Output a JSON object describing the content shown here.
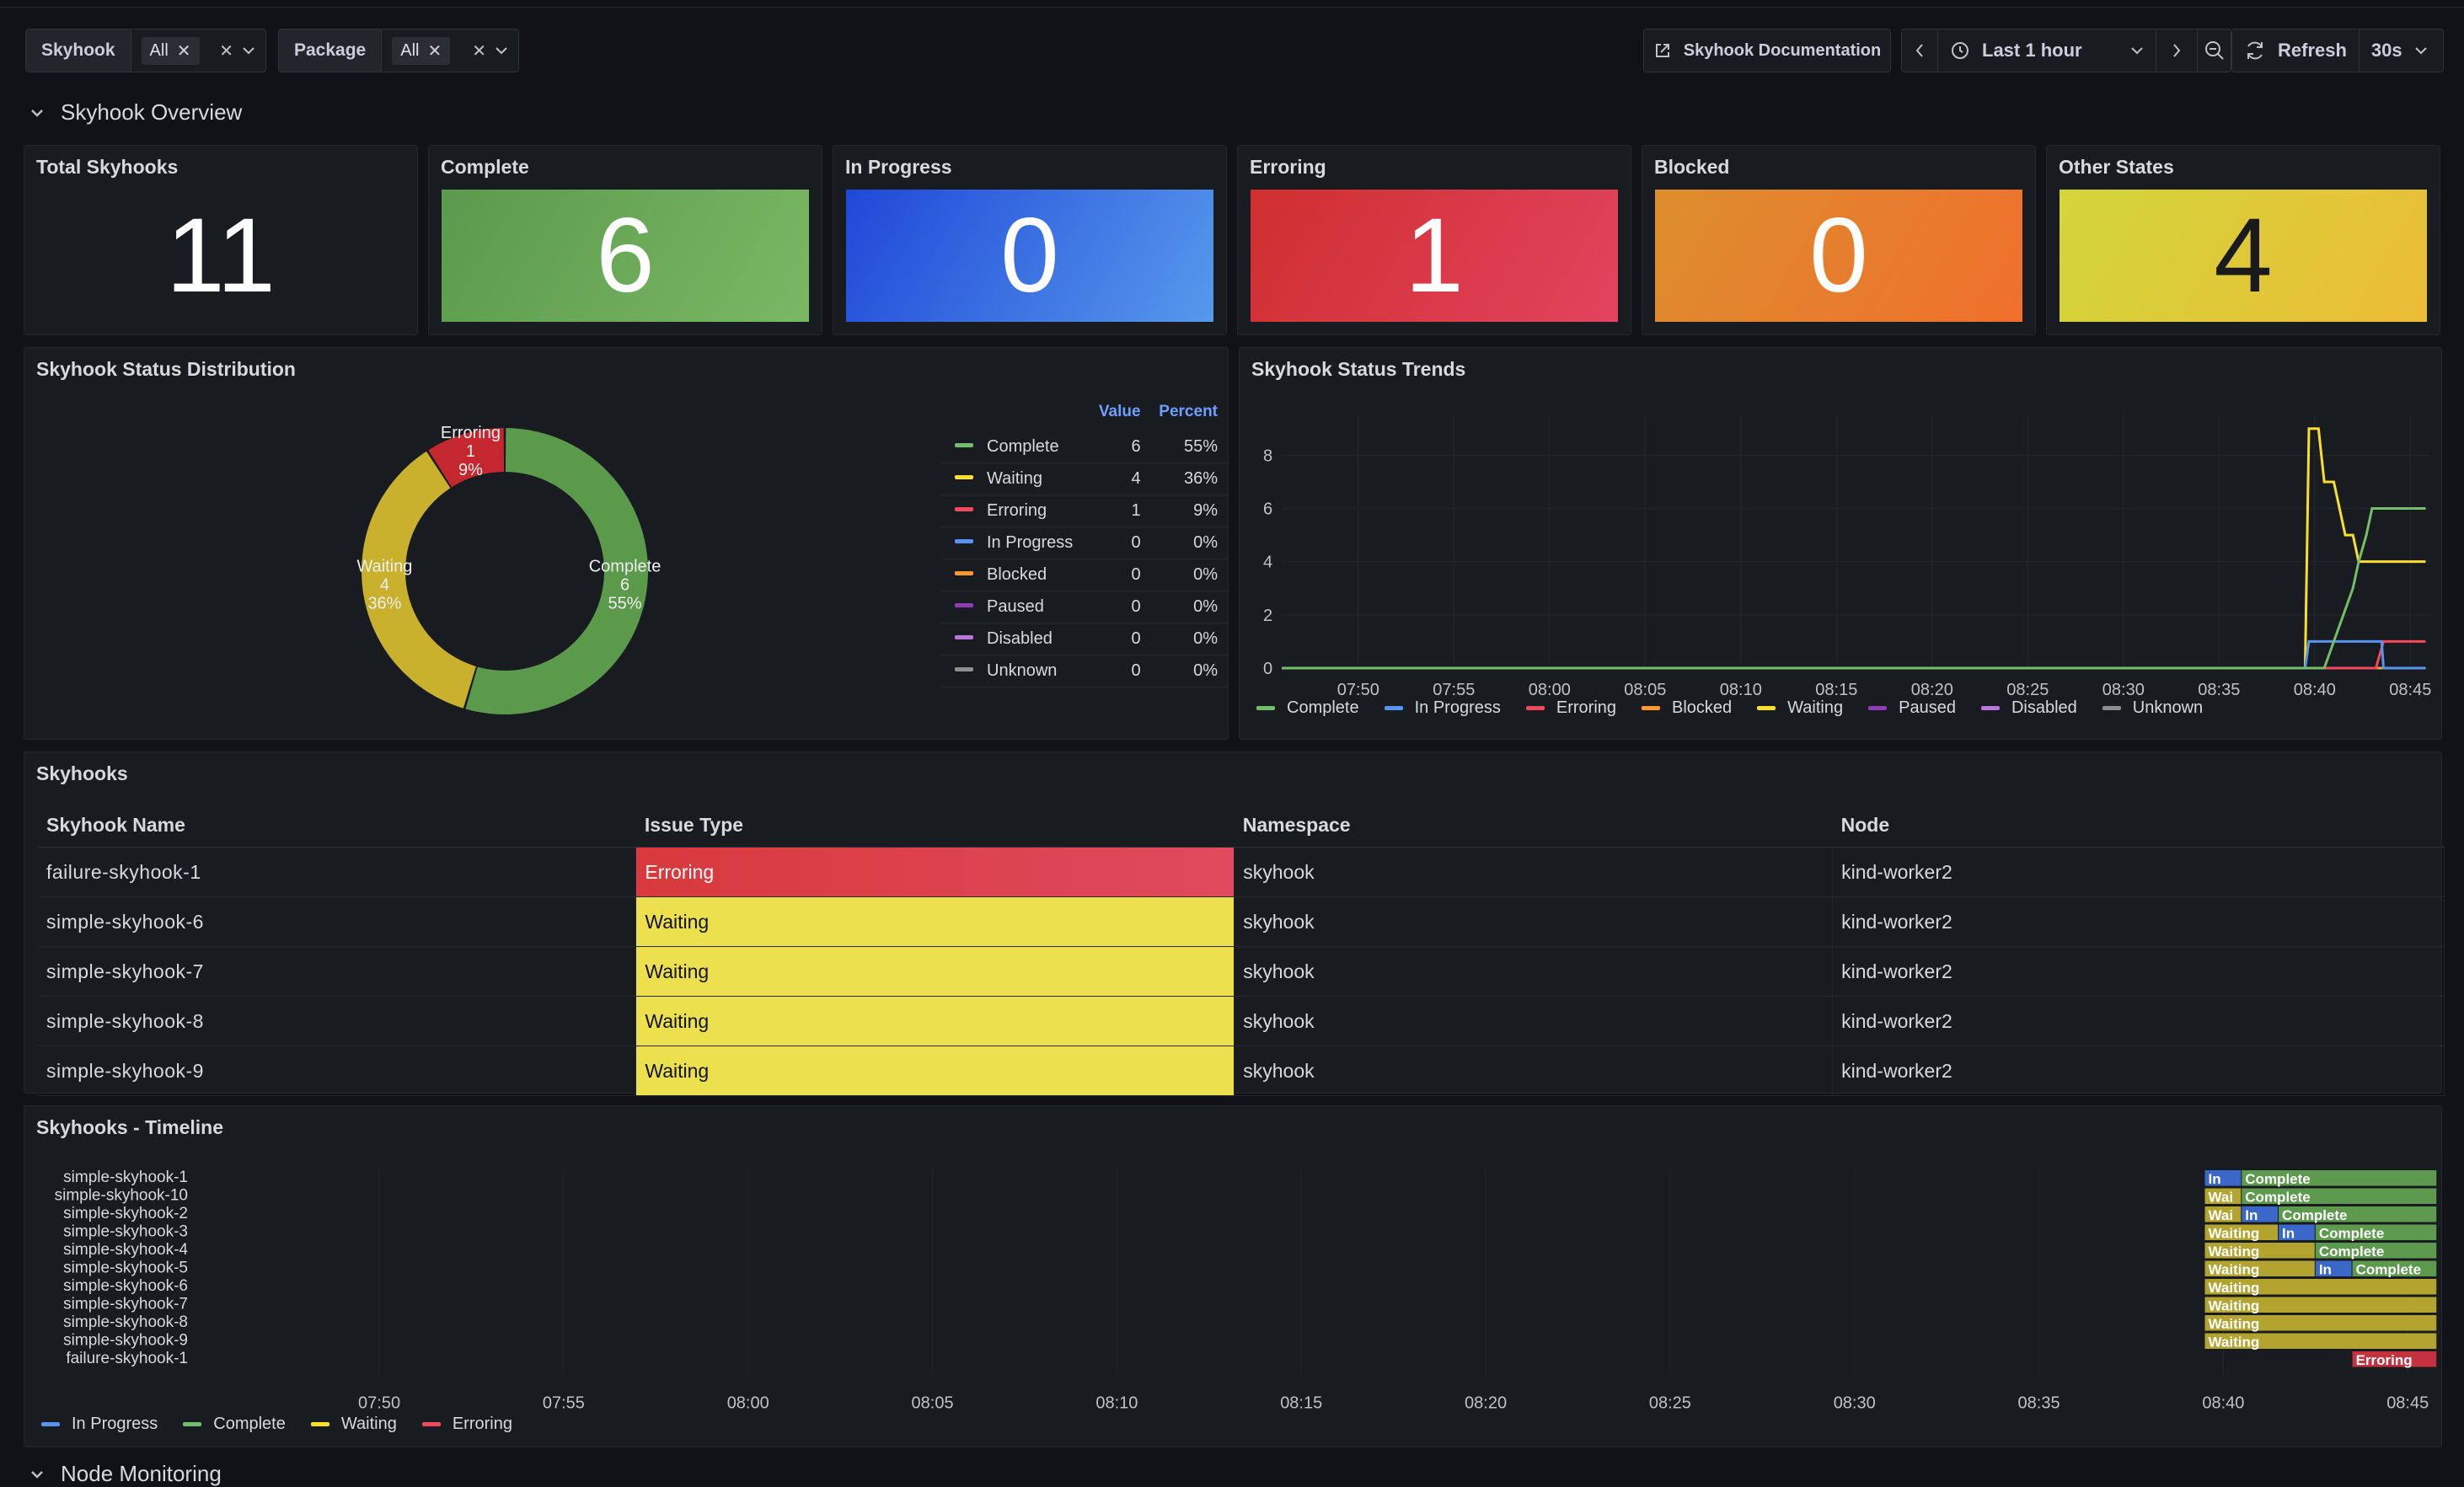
{
  "toolbar": {
    "filters": [
      {
        "label": "Skyhook",
        "value": "All"
      },
      {
        "label": "Package",
        "value": "All"
      }
    ],
    "documentation": "Skyhook Documentation",
    "time_range": "Last 1 hour",
    "refresh_label": "Refresh",
    "refresh_interval": "30s"
  },
  "section": {
    "title": "Skyhook Overview"
  },
  "stats": [
    {
      "title": "Total Skyhooks",
      "value": "11",
      "color": "#181b1f"
    },
    {
      "title": "Complete",
      "value": "6",
      "color": "#73bf69"
    },
    {
      "title": "In Progress",
      "value": "0",
      "color": "#3274d9"
    },
    {
      "title": "Erroring",
      "value": "1",
      "color": "#e02f44"
    },
    {
      "title": "Blocked",
      "value": "0",
      "color": "#ff780a"
    },
    {
      "title": "Other States",
      "value": "4",
      "color": "#fade2a"
    }
  ],
  "distribution": {
    "title": "Skyhook Status Distribution",
    "col_value": "Value",
    "col_percent": "Percent",
    "rows": [
      {
        "name": "Complete",
        "value": "6",
        "percent": "55%",
        "color": "#73bf69"
      },
      {
        "name": "Waiting",
        "value": "4",
        "percent": "36%",
        "color": "#fade2a"
      },
      {
        "name": "Erroring",
        "value": "1",
        "percent": "9%",
        "color": "#f2495c"
      },
      {
        "name": "In Progress",
        "value": "0",
        "percent": "0%",
        "color": "#5794f2"
      },
      {
        "name": "Blocked",
        "value": "0",
        "percent": "0%",
        "color": "#ff9830"
      },
      {
        "name": "Paused",
        "value": "0",
        "percent": "0%",
        "color": "#8f3bb8"
      },
      {
        "name": "Disabled",
        "value": "0",
        "percent": "0%",
        "color": "#b877d9"
      },
      {
        "name": "Unknown",
        "value": "0",
        "percent": "0%",
        "color": "#8e8e8e"
      }
    ]
  },
  "trends": {
    "title": "Skyhook Status Trends",
    "legend": [
      {
        "name": "Complete",
        "color": "#73bf69"
      },
      {
        "name": "In Progress",
        "color": "#5794f2"
      },
      {
        "name": "Erroring",
        "color": "#f2495c"
      },
      {
        "name": "Blocked",
        "color": "#ff9830"
      },
      {
        "name": "Waiting",
        "color": "#fade2a"
      },
      {
        "name": "Paused",
        "color": "#8f3bb8"
      },
      {
        "name": "Disabled",
        "color": "#b877d9"
      },
      {
        "name": "Unknown",
        "color": "#8e8e8e"
      }
    ]
  },
  "skyhooks_table": {
    "title": "Skyhooks",
    "columns": [
      "Skyhook Name",
      "Issue Type",
      "Namespace",
      "Node"
    ],
    "rows": [
      {
        "name": "failure-skyhook-1",
        "issue": "Erroring",
        "namespace": "skyhook",
        "node": "kind-worker2"
      },
      {
        "name": "simple-skyhook-6",
        "issue": "Waiting",
        "namespace": "skyhook",
        "node": "kind-worker2"
      },
      {
        "name": "simple-skyhook-7",
        "issue": "Waiting",
        "namespace": "skyhook",
        "node": "kind-worker2"
      },
      {
        "name": "simple-skyhook-8",
        "issue": "Waiting",
        "namespace": "skyhook",
        "node": "kind-worker2"
      },
      {
        "name": "simple-skyhook-9",
        "issue": "Waiting",
        "namespace": "skyhook",
        "node": "kind-worker2"
      }
    ],
    "issue_colors": {
      "Erroring": "#e0404a",
      "Waiting": "#ede04e"
    }
  },
  "timeline": {
    "title": "Skyhooks - Timeline",
    "legend": [
      {
        "name": "In Progress",
        "color": "#5794f2"
      },
      {
        "name": "Complete",
        "color": "#73bf69"
      },
      {
        "name": "Waiting",
        "color": "#fade2a"
      },
      {
        "name": "Erroring",
        "color": "#f2495c"
      }
    ]
  },
  "next_section": "Node Monitoring",
  "chart_data": [
    {
      "type": "pie",
      "title": "Skyhook Status Distribution",
      "donut": true,
      "slices": [
        {
          "name": "Complete",
          "value": 6,
          "percent": "55%",
          "color": "#5a9a4a"
        },
        {
          "name": "Waiting",
          "value": 4,
          "percent": "36%",
          "color": "#c9b12e"
        },
        {
          "name": "Erroring",
          "value": 1,
          "percent": "9%",
          "color": "#c4282e"
        }
      ]
    },
    {
      "type": "line",
      "title": "Skyhook Status Trends",
      "x_ticks": [
        "07:50",
        "07:55",
        "08:00",
        "08:05",
        "08:10",
        "08:15",
        "08:20",
        "08:25",
        "08:30",
        "08:35",
        "08:40",
        "08:45"
      ],
      "xlim": [
        "07:46",
        "08:46"
      ],
      "ylim": [
        0,
        9.5
      ],
      "y_ticks": [
        0,
        2,
        4,
        6,
        8
      ],
      "grid": true,
      "legend": "bottom",
      "series": [
        {
          "name": "Complete",
          "color": "#73bf69",
          "points": [
            [
              "07:46",
              0
            ],
            [
              "08:40.5",
              0
            ],
            [
              "08:41",
              1
            ],
            [
              "08:41.5",
              2
            ],
            [
              "08:42",
              3
            ],
            [
              "08:42.3",
              4
            ],
            [
              "08:42.7",
              5
            ],
            [
              "08:43",
              6
            ],
            [
              "08:45.8",
              6
            ]
          ]
        },
        {
          "name": "In Progress",
          "color": "#5794f2",
          "points": [
            [
              "07:46",
              0
            ],
            [
              "08:39.5",
              0
            ],
            [
              "08:39.7",
              1
            ],
            [
              "08:43.5",
              1
            ],
            [
              "08:43.6",
              0
            ],
            [
              "08:45.8",
              0
            ]
          ]
        },
        {
          "name": "Erroring",
          "color": "#f2495c",
          "points": [
            [
              "07:46",
              0
            ],
            [
              "08:43.2",
              0
            ],
            [
              "08:43.6",
              1
            ],
            [
              "08:45.8",
              1
            ]
          ]
        },
        {
          "name": "Blocked",
          "color": "#ff9830",
          "points": [
            [
              "07:46",
              0
            ],
            [
              "08:45.8",
              0
            ]
          ]
        },
        {
          "name": "Waiting",
          "color": "#fade2a",
          "points": [
            [
              "07:46",
              0
            ],
            [
              "08:39.5",
              0
            ],
            [
              "08:39.7",
              9
            ],
            [
              "08:40.2",
              9
            ],
            [
              "08:40.5",
              7
            ],
            [
              "08:41",
              7
            ],
            [
              "08:41.3",
              6
            ],
            [
              "08:41.6",
              5
            ],
            [
              "08:42",
              5
            ],
            [
              "08:42.3",
              4
            ],
            [
              "08:45.8",
              4
            ]
          ]
        },
        {
          "name": "Paused",
          "color": "#8f3bb8",
          "points": [
            [
              "07:46",
              0
            ],
            [
              "08:45.8",
              0
            ]
          ]
        },
        {
          "name": "Disabled",
          "color": "#b877d9",
          "points": [
            [
              "07:46",
              0
            ],
            [
              "08:45.8",
              0
            ]
          ]
        },
        {
          "name": "Unknown",
          "color": "#8e8e8e",
          "points": [
            [
              "07:46",
              0
            ],
            [
              "08:45.8",
              0
            ]
          ]
        }
      ]
    },
    {
      "type": "timeline",
      "title": "Skyhooks - Timeline",
      "x_ticks": [
        "07:50",
        "07:55",
        "08:00",
        "08:05",
        "08:10",
        "08:15",
        "08:20",
        "08:25",
        "08:30",
        "08:35",
        "08:40",
        "08:45"
      ],
      "xlim": [
        "07:46",
        "08:46"
      ],
      "rows": [
        {
          "name": "simple-skyhook-1",
          "segments": [
            {
              "state": "In",
              "start": "08:39.5",
              "end": "08:40.5"
            },
            {
              "state": "Complete",
              "start": "08:40.5",
              "end": "08:45.8"
            }
          ]
        },
        {
          "name": "simple-skyhook-10",
          "segments": [
            {
              "state": "Wai",
              "start": "08:39.5",
              "end": "08:40.5"
            },
            {
              "state": "Complete",
              "start": "08:40.5",
              "end": "08:45.8"
            }
          ]
        },
        {
          "name": "simple-skyhook-2",
          "segments": [
            {
              "state": "Wai",
              "start": "08:39.5",
              "end": "08:40.5"
            },
            {
              "state": "In",
              "start": "08:40.5",
              "end": "08:41.5"
            },
            {
              "state": "Complete",
              "start": "08:41.5",
              "end": "08:45.8"
            }
          ]
        },
        {
          "name": "simple-skyhook-3",
          "segments": [
            {
              "state": "Waiting",
              "start": "08:39.5",
              "end": "08:41.5"
            },
            {
              "state": "In",
              "start": "08:41.5",
              "end": "08:42.5"
            },
            {
              "state": "Complete",
              "start": "08:42.5",
              "end": "08:45.8"
            }
          ]
        },
        {
          "name": "simple-skyhook-4",
          "segments": [
            {
              "state": "Waiting",
              "start": "08:39.5",
              "end": "08:42.5"
            },
            {
              "state": "Complete",
              "start": "08:42.5",
              "end": "08:45.8"
            }
          ]
        },
        {
          "name": "simple-skyhook-5",
          "segments": [
            {
              "state": "Waiting",
              "start": "08:39.5",
              "end": "08:42.5"
            },
            {
              "state": "In",
              "start": "08:42.5",
              "end": "08:43.5"
            },
            {
              "state": "Complete",
              "start": "08:43.5",
              "end": "08:45.8"
            }
          ]
        },
        {
          "name": "simple-skyhook-6",
          "segments": [
            {
              "state": "Waiting",
              "start": "08:39.5",
              "end": "08:45.8"
            }
          ]
        },
        {
          "name": "simple-skyhook-7",
          "segments": [
            {
              "state": "Waiting",
              "start": "08:39.5",
              "end": "08:45.8"
            }
          ]
        },
        {
          "name": "simple-skyhook-8",
          "segments": [
            {
              "state": "Waiting",
              "start": "08:39.5",
              "end": "08:45.8"
            }
          ]
        },
        {
          "name": "simple-skyhook-9",
          "segments": [
            {
              "state": "Waiting",
              "start": "08:39.5",
              "end": "08:45.8"
            }
          ]
        },
        {
          "name": "failure-skyhook-1",
          "segments": [
            {
              "state": "Erroring",
              "start": "08:43.5",
              "end": "08:45.8"
            }
          ]
        }
      ]
    }
  ]
}
